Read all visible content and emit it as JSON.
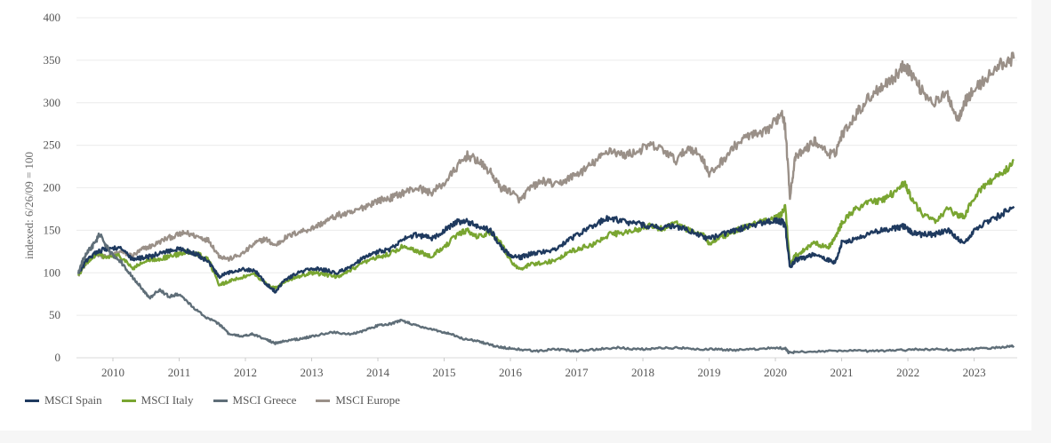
{
  "chart_data": {
    "type": "line",
    "title": "",
    "xlabel": "",
    "ylabel": "indexed: 6/26/09 = 100",
    "ylim": [
      0,
      400
    ],
    "yticks": [
      0,
      50,
      100,
      150,
      200,
      250,
      300,
      350,
      400
    ],
    "xlim": [
      2009.45,
      2023.65
    ],
    "xticks": [
      2010,
      2011,
      2012,
      2013,
      2014,
      2015,
      2016,
      2017,
      2018,
      2019,
      2020,
      2021,
      2022,
      2023
    ],
    "grid": true,
    "legend_position": "bottom-left",
    "series": [
      {
        "name": "MSCI Europe",
        "color": "#9a9088",
        "x": [
          2009.48,
          2009.6,
          2009.75,
          2009.9,
          2010.1,
          2010.3,
          2010.45,
          2010.6,
          2010.8,
          2011.0,
          2011.1,
          2011.3,
          2011.45,
          2011.6,
          2011.75,
          2011.95,
          2012.15,
          2012.3,
          2012.45,
          2012.6,
          2012.8,
          2013.0,
          2013.2,
          2013.4,
          2013.6,
          2013.8,
          2014.0,
          2014.2,
          2014.4,
          2014.6,
          2014.8,
          2015.0,
          2015.2,
          2015.35,
          2015.5,
          2015.7,
          2015.85,
          2016.0,
          2016.15,
          2016.3,
          2016.5,
          2016.7,
          2016.9,
          2017.1,
          2017.3,
          2017.5,
          2017.7,
          2017.9,
          2018.1,
          2018.3,
          2018.5,
          2018.7,
          2018.9,
          2019.0,
          2019.2,
          2019.4,
          2019.6,
          2019.8,
          2020.0,
          2020.1,
          2020.15,
          2020.22,
          2020.3,
          2020.45,
          2020.6,
          2020.8,
          2020.9,
          2021.0,
          2021.2,
          2021.4,
          2021.6,
          2021.8,
          2021.95,
          2022.05,
          2022.2,
          2022.4,
          2022.6,
          2022.75,
          2022.85,
          2023.0,
          2023.2,
          2023.4,
          2023.6
        ],
        "values": [
          98,
          112,
          123,
          118,
          125,
          120,
          128,
          132,
          140,
          145,
          147,
          142,
          138,
          120,
          116,
          122,
          135,
          140,
          132,
          141,
          148,
          152,
          160,
          168,
          170,
          178,
          185,
          188,
          195,
          200,
          194,
          205,
          225,
          238,
          232,
          218,
          200,
          196,
          185,
          200,
          208,
          203,
          212,
          220,
          232,
          245,
          238,
          242,
          250,
          245,
          232,
          248,
          235,
          215,
          232,
          250,
          262,
          262,
          278,
          290,
          270,
          190,
          235,
          245,
          255,
          240,
          240,
          262,
          285,
          305,
          320,
          330,
          345,
          335,
          315,
          300,
          310,
          280,
          300,
          315,
          330,
          345,
          352
        ]
      },
      {
        "name": "MSCI Italy",
        "color": "#79a531",
        "x": [
          2009.48,
          2009.6,
          2009.75,
          2009.9,
          2010.1,
          2010.3,
          2010.45,
          2010.6,
          2010.8,
          2011.0,
          2011.15,
          2011.3,
          2011.45,
          2011.6,
          2011.75,
          2011.95,
          2012.15,
          2012.3,
          2012.45,
          2012.6,
          2012.8,
          2013.0,
          2013.2,
          2013.4,
          2013.6,
          2013.8,
          2014.0,
          2014.2,
          2014.4,
          2014.6,
          2014.8,
          2015.0,
          2015.2,
          2015.35,
          2015.5,
          2015.7,
          2015.85,
          2016.0,
          2016.15,
          2016.3,
          2016.5,
          2016.7,
          2016.9,
          2017.1,
          2017.3,
          2017.5,
          2017.7,
          2017.9,
          2018.1,
          2018.3,
          2018.5,
          2018.7,
          2018.9,
          2019.0,
          2019.2,
          2019.4,
          2019.6,
          2019.8,
          2020.0,
          2020.1,
          2020.15,
          2020.22,
          2020.3,
          2020.45,
          2020.6,
          2020.8,
          2020.9,
          2021.0,
          2021.2,
          2021.4,
          2021.6,
          2021.8,
          2021.95,
          2022.05,
          2022.2,
          2022.4,
          2022.6,
          2022.75,
          2022.85,
          2023.0,
          2023.2,
          2023.4,
          2023.6
        ],
        "values": [
          97,
          112,
          122,
          118,
          120,
          105,
          112,
          115,
          118,
          122,
          125,
          122,
          115,
          85,
          90,
          95,
          98,
          88,
          82,
          90,
          96,
          100,
          98,
          95,
          103,
          112,
          118,
          123,
          132,
          125,
          120,
          130,
          145,
          150,
          142,
          148,
          135,
          115,
          103,
          110,
          112,
          115,
          125,
          130,
          135,
          145,
          147,
          150,
          155,
          152,
          158,
          150,
          145,
          135,
          142,
          150,
          155,
          160,
          165,
          170,
          178,
          110,
          120,
          128,
          135,
          130,
          140,
          158,
          175,
          182,
          185,
          195,
          205,
          188,
          170,
          160,
          175,
          168,
          165,
          190,
          205,
          215,
          232
        ]
      },
      {
        "name": "MSCI Spain",
        "color": "#1f3a5f",
        "x": [
          2009.48,
          2009.6,
          2009.75,
          2009.9,
          2010.1,
          2010.3,
          2010.45,
          2010.6,
          2010.8,
          2011.0,
          2011.15,
          2011.3,
          2011.45,
          2011.6,
          2011.75,
          2011.95,
          2012.15,
          2012.3,
          2012.45,
          2012.6,
          2012.8,
          2013.0,
          2013.2,
          2013.4,
          2013.6,
          2013.8,
          2014.0,
          2014.2,
          2014.4,
          2014.6,
          2014.8,
          2015.0,
          2015.2,
          2015.35,
          2015.5,
          2015.7,
          2015.85,
          2016.0,
          2016.15,
          2016.3,
          2016.5,
          2016.7,
          2016.9,
          2017.1,
          2017.3,
          2017.5,
          2017.7,
          2017.9,
          2018.1,
          2018.3,
          2018.5,
          2018.7,
          2018.9,
          2019.0,
          2019.2,
          2019.4,
          2019.6,
          2019.8,
          2020.0,
          2020.1,
          2020.15,
          2020.22,
          2020.3,
          2020.45,
          2020.6,
          2020.8,
          2020.9,
          2021.0,
          2021.2,
          2021.4,
          2021.6,
          2021.8,
          2021.95,
          2022.05,
          2022.2,
          2022.4,
          2022.6,
          2022.75,
          2022.85,
          2023.0,
          2023.2,
          2023.4,
          2023.6
        ],
        "values": [
          100,
          114,
          125,
          128,
          130,
          115,
          118,
          120,
          125,
          128,
          125,
          120,
          112,
          95,
          100,
          105,
          102,
          88,
          78,
          92,
          100,
          105,
          103,
          100,
          108,
          118,
          125,
          128,
          140,
          145,
          140,
          150,
          160,
          160,
          155,
          150,
          132,
          120,
          118,
          122,
          125,
          128,
          140,
          148,
          158,
          165,
          160,
          158,
          155,
          153,
          155,
          150,
          142,
          140,
          145,
          150,
          155,
          158,
          162,
          160,
          155,
          105,
          115,
          118,
          122,
          115,
          112,
          135,
          140,
          145,
          150,
          152,
          155,
          148,
          145,
          145,
          150,
          140,
          135,
          150,
          160,
          168,
          178
        ]
      },
      {
        "name": "MSCI Greece",
        "color": "#5f6e78",
        "x": [
          2009.48,
          2009.55,
          2009.62,
          2009.7,
          2009.8,
          2009.95,
          2010.1,
          2010.25,
          2010.4,
          2010.55,
          2010.7,
          2010.85,
          2011.0,
          2011.2,
          2011.4,
          2011.6,
          2011.75,
          2011.95,
          2012.1,
          2012.3,
          2012.45,
          2012.6,
          2012.8,
          2013.0,
          2013.3,
          2013.6,
          2013.8,
          2014.0,
          2014.2,
          2014.35,
          2014.5,
          2014.7,
          2014.9,
          2015.1,
          2015.3,
          2015.5,
          2015.7,
          2015.9,
          2016.1,
          2016.4,
          2016.7,
          2017.0,
          2017.3,
          2017.6,
          2017.9,
          2018.2,
          2018.5,
          2018.8,
          2019.1,
          2019.4,
          2019.7,
          2020.0,
          2020.15,
          2020.2,
          2020.4,
          2020.7,
          2021.0,
          2021.3,
          2021.6,
          2021.9,
          2022.2,
          2022.5,
          2022.8,
          2023.1,
          2023.4,
          2023.6
        ],
        "values": [
          100,
          115,
          125,
          132,
          145,
          125,
          115,
          100,
          85,
          70,
          80,
          72,
          75,
          60,
          48,
          40,
          28,
          25,
          28,
          22,
          17,
          20,
          22,
          25,
          30,
          28,
          32,
          38,
          40,
          44,
          40,
          35,
          32,
          28,
          22,
          20,
          15,
          12,
          10,
          8,
          10,
          8,
          10,
          12,
          10,
          11,
          12,
          10,
          10,
          9,
          10,
          12,
          11,
          6,
          7,
          8,
          8,
          8,
          8,
          9,
          10,
          10,
          9,
          11,
          12,
          14
        ]
      }
    ],
    "legend": [
      "MSCI Spain",
      "MSCI Italy",
      "MSCI Greece",
      "MSCI Europe"
    ]
  }
}
